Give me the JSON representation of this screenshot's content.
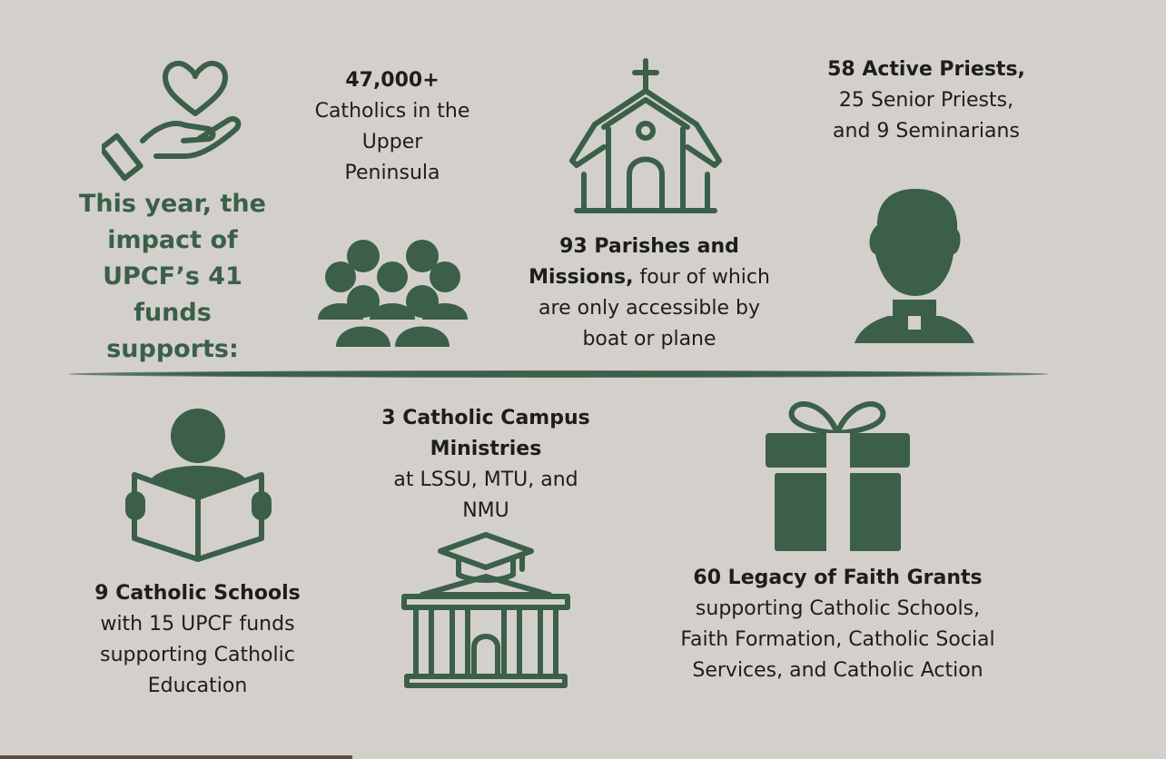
{
  "headline": [
    "This year, the",
    "impact of",
    "UPCF’s 41",
    "funds",
    "supports:"
  ],
  "catholics": {
    "bold": "47,000+",
    "lines": [
      "Catholics in the",
      "Upper",
      "Peninsula"
    ]
  },
  "parishes": {
    "bold1": "93 Parishes and",
    "bold2": "Missions,",
    "rest1": " four of which",
    "lines": [
      "are only accessible by",
      "boat or plane"
    ]
  },
  "priests": {
    "bold": "58 Active Priests,",
    "lines": [
      "25 Senior Priests,",
      "and 9 Seminarians"
    ]
  },
  "schools": {
    "bold": "9 Catholic Schools",
    "lines": [
      "with 15 UPCF funds",
      "supporting Catholic",
      "Education"
    ]
  },
  "campus": {
    "bold": [
      "3 Catholic Campus",
      "Ministries"
    ],
    "lines": [
      "at LSSU, MTU, and",
      "NMU"
    ]
  },
  "grants": {
    "bold": "60 Legacy of Faith Grants",
    "lines": [
      "supporting Catholic Schools,",
      "Faith Formation, Catholic Social",
      "Services, and Catholic Action"
    ]
  },
  "colors": {
    "background": "#d3d0cc",
    "accent": "#3b5f49"
  },
  "icons": [
    "heart-hand-icon",
    "people-group-icon",
    "church-icon",
    "priest-icon",
    "reader-icon",
    "university-icon",
    "gift-icon"
  ]
}
